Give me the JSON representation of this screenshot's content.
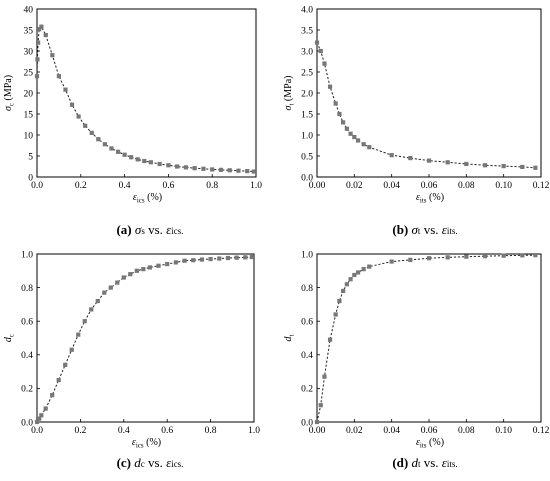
{
  "chart_data": [
    {
      "id": "a",
      "type": "line",
      "caption": {
        "letter": "(a)",
        "text": "σs vs. εics."
      },
      "ylabel": "σc (MPa)",
      "xlabel": "εics (%)",
      "xlim": [
        0,
        1.0
      ],
      "ylim": [
        0,
        40
      ],
      "xticks": [
        0.0,
        0.2,
        0.4,
        0.6,
        0.8,
        1.0
      ],
      "yticks": [
        0,
        5,
        10,
        15,
        20,
        25,
        30,
        35,
        40
      ],
      "xtick_labels": [
        "0.0",
        "0.2",
        "0.4",
        "0.6",
        "0.8",
        "1.0"
      ],
      "ytick_labels": [
        "0",
        "5",
        "10",
        "15",
        "20",
        "25",
        "30",
        "35",
        "40"
      ],
      "series": [
        {
          "marker": "square",
          "color": "#777777",
          "x": [
            0.0,
            0.002,
            0.005,
            0.01,
            0.02,
            0.04,
            0.07,
            0.1,
            0.13,
            0.16,
            0.19,
            0.22,
            0.25,
            0.28,
            0.31,
            0.34,
            0.37,
            0.4,
            0.43,
            0.46,
            0.49,
            0.52,
            0.56,
            0.6,
            0.64,
            0.68,
            0.72,
            0.76,
            0.8,
            0.84,
            0.88,
            0.92,
            0.96,
            0.99
          ],
          "y": [
            24.0,
            28.0,
            32.0,
            35.2,
            35.8,
            33.8,
            29.0,
            24.0,
            20.8,
            17.2,
            14.4,
            12.2,
            10.5,
            9.0,
            7.8,
            6.8,
            6.0,
            5.3,
            4.7,
            4.2,
            3.8,
            3.5,
            3.1,
            2.8,
            2.5,
            2.3,
            2.1,
            1.95,
            1.8,
            1.7,
            1.6,
            1.5,
            1.4,
            1.3
          ]
        }
      ]
    },
    {
      "id": "b",
      "type": "line",
      "caption": {
        "letter": "(b)",
        "text": "σt vs. εits."
      },
      "ylabel": "σt (MPa)",
      "xlabel": "εits (%)",
      "xlim": [
        0,
        0.12
      ],
      "ylim": [
        0,
        4.0
      ],
      "xticks": [
        0.0,
        0.02,
        0.04,
        0.06,
        0.08,
        0.1,
        0.12
      ],
      "yticks": [
        0,
        0.5,
        1.0,
        1.5,
        2.0,
        2.5,
        3.0,
        3.5,
        4.0
      ],
      "xtick_labels": [
        "0.00",
        "0.02",
        "0.04",
        "0.06",
        "0.08",
        "0.10",
        "0.12"
      ],
      "ytick_labels": [
        "0.0",
        "0.5",
        "1.0",
        "1.5",
        "2.0",
        "2.5",
        "3.0",
        "3.5",
        "4.0"
      ],
      "series": [
        {
          "marker": "square",
          "color": "#777777",
          "x": [
            0.0,
            0.002,
            0.004,
            0.007,
            0.01,
            0.012,
            0.014,
            0.016,
            0.018,
            0.02,
            0.022,
            0.025,
            0.028,
            0.04,
            0.05,
            0.06,
            0.07,
            0.08,
            0.09,
            0.1,
            0.11,
            0.117
          ],
          "y": [
            3.2,
            3.0,
            2.7,
            2.15,
            1.75,
            1.5,
            1.3,
            1.15,
            1.03,
            0.95,
            0.87,
            0.78,
            0.71,
            0.52,
            0.45,
            0.39,
            0.35,
            0.31,
            0.28,
            0.26,
            0.24,
            0.22
          ]
        }
      ]
    },
    {
      "id": "c",
      "type": "line",
      "caption": {
        "letter": "(c)",
        "text": "dc vs. εics."
      },
      "ylabel": "dc",
      "xlabel": "εics (%)",
      "xlim": [
        0,
        1.0
      ],
      "ylim": [
        0,
        1.0
      ],
      "xticks": [
        0.0,
        0.2,
        0.4,
        0.6,
        0.8,
        1.0
      ],
      "yticks": [
        0,
        0.2,
        0.4,
        0.6,
        0.8,
        1.0
      ],
      "xtick_labels": [
        "0.0",
        "0.2",
        "0.4",
        "0.6",
        "0.8",
        "1.0"
      ],
      "ytick_labels": [
        "0.0",
        "0.2",
        "0.4",
        "0.6",
        "0.8",
        "1.0"
      ],
      "series": [
        {
          "marker": "square",
          "color": "#777777",
          "x": [
            0.0,
            0.01,
            0.02,
            0.04,
            0.07,
            0.1,
            0.13,
            0.16,
            0.19,
            0.22,
            0.25,
            0.28,
            0.31,
            0.34,
            0.37,
            0.4,
            0.43,
            0.46,
            0.49,
            0.52,
            0.56,
            0.6,
            0.64,
            0.68,
            0.72,
            0.76,
            0.8,
            0.84,
            0.88,
            0.92,
            0.96,
            0.99
          ],
          "y": [
            0.0,
            0.02,
            0.04,
            0.08,
            0.16,
            0.25,
            0.34,
            0.43,
            0.52,
            0.6,
            0.67,
            0.72,
            0.77,
            0.8,
            0.83,
            0.86,
            0.88,
            0.9,
            0.91,
            0.92,
            0.93,
            0.94,
            0.95,
            0.96,
            0.963,
            0.967,
            0.97,
            0.973,
            0.976,
            0.978,
            0.98,
            0.982
          ]
        }
      ]
    },
    {
      "id": "d",
      "type": "line",
      "caption": {
        "letter": "(d)",
        "text": "dt vs. εits."
      },
      "ylabel": "dt",
      "xlabel": "εits (%)",
      "xlim": [
        0,
        0.12
      ],
      "ylim": [
        0,
        1.0
      ],
      "xticks": [
        0.0,
        0.02,
        0.04,
        0.06,
        0.08,
        0.1,
        0.12
      ],
      "yticks": [
        0,
        0.2,
        0.4,
        0.6,
        0.8,
        1.0
      ],
      "xtick_labels": [
        "0.00",
        "0.02",
        "0.04",
        "0.06",
        "0.08",
        "0.10",
        "0.12"
      ],
      "ytick_labels": [
        "0.0",
        "0.2",
        "0.4",
        "0.6",
        "0.8",
        "1.0"
      ],
      "series": [
        {
          "marker": "square",
          "color": "#777777",
          "x": [
            0.0,
            0.002,
            0.004,
            0.007,
            0.01,
            0.012,
            0.014,
            0.016,
            0.018,
            0.02,
            0.022,
            0.025,
            0.028,
            0.04,
            0.05,
            0.06,
            0.07,
            0.08,
            0.09,
            0.1,
            0.11,
            0.117
          ],
          "y": [
            0.0,
            0.1,
            0.27,
            0.49,
            0.64,
            0.72,
            0.78,
            0.82,
            0.85,
            0.875,
            0.89,
            0.91,
            0.925,
            0.955,
            0.965,
            0.975,
            0.98,
            0.984,
            0.987,
            0.99,
            0.992,
            0.993
          ]
        }
      ]
    }
  ]
}
